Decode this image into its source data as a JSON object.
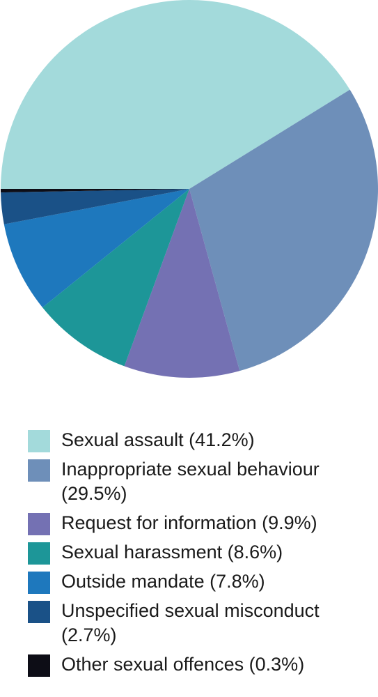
{
  "chart_data": {
    "type": "pie",
    "categories": [
      "Sexual assault (41.2%)",
      "Inappropriate sexual behaviour (29.5%)",
      "Request for information (9.9%)",
      "Sexual harassment (8.6%)",
      "Outside mandate (7.8%)",
      "Unspecified sexual misconduct (2.7%)",
      "Other sexual offences (0.3%)"
    ],
    "values": [
      41.2,
      29.5,
      9.9,
      8.6,
      7.8,
      2.7,
      0.3
    ],
    "colors": [
      "#a3dadb",
      "#6e8fb9",
      "#7471b3",
      "#1d9698",
      "#1e78bd",
      "#1a5187",
      "#0d0d16"
    ]
  }
}
